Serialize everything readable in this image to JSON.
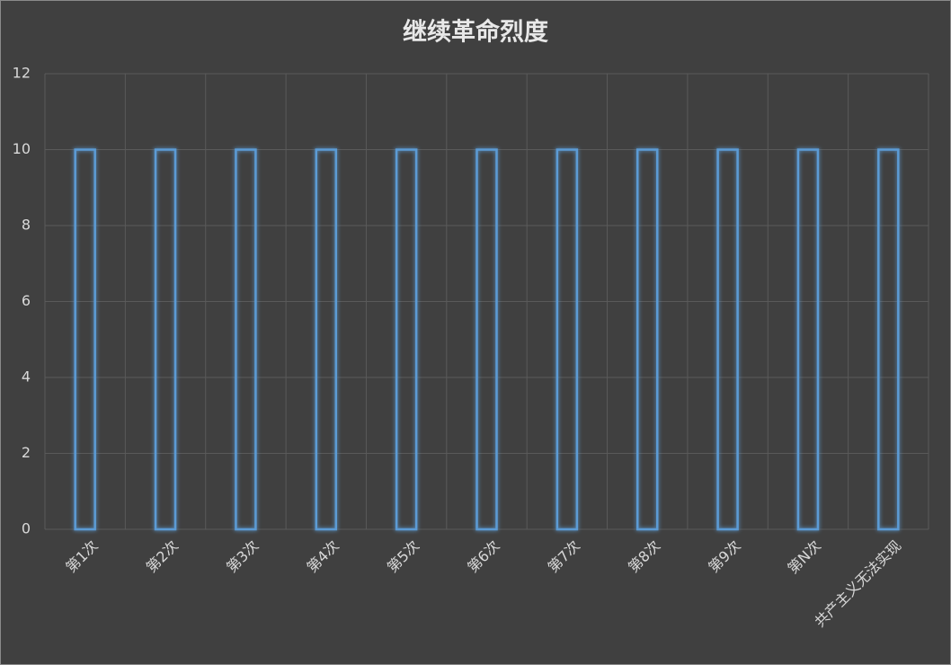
{
  "chart_data": {
    "type": "bar",
    "title": "继续革命烈度",
    "categories": [
      "第1次",
      "第2次",
      "第3次",
      "第4次",
      "第5次",
      "第6次",
      "第7次",
      "第8次",
      "第9次",
      "第N次",
      "共产主义无法实现"
    ],
    "values": [
      10,
      10,
      10,
      10,
      10,
      10,
      10,
      10,
      10,
      10,
      10
    ],
    "color": "#5b9bd5",
    "ylim": [
      0,
      12
    ],
    "yticks": [
      0,
      2,
      4,
      6,
      8,
      10,
      12
    ],
    "grid": true
  }
}
